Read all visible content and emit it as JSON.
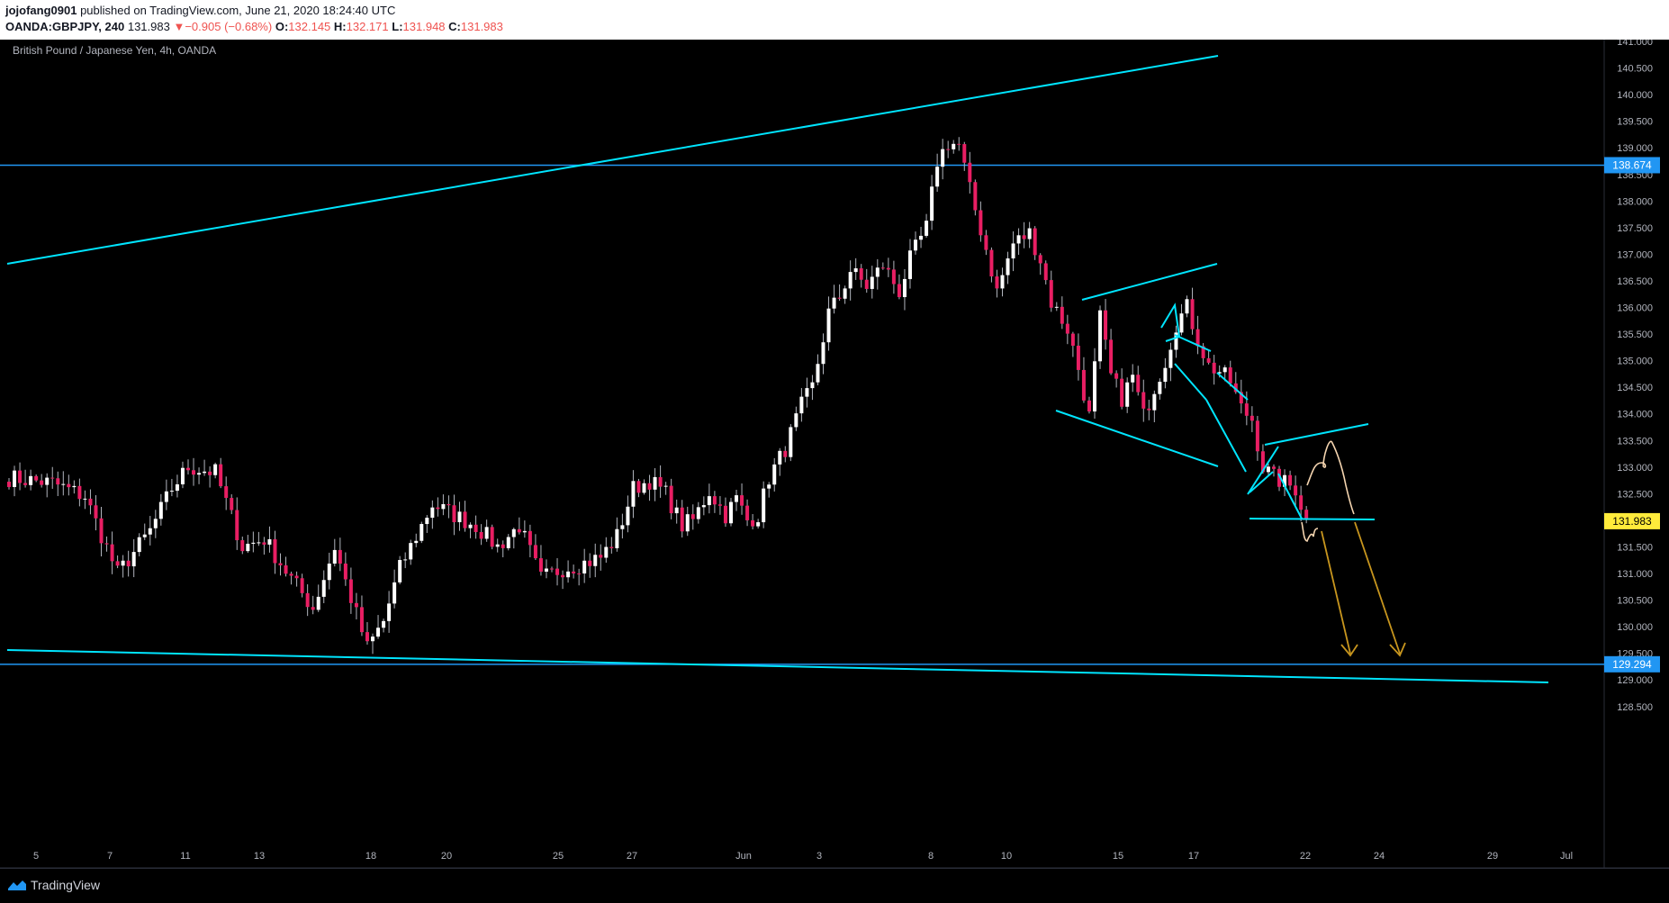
{
  "header": {
    "author": "jojofang0901",
    "published_text": " published on TradingView.com, June 21, 2020 18:24:40 UTC",
    "symbol": "OANDA:GBPJPY, 240",
    "last": "131.983",
    "change": "−0.905 (−0.68%)",
    "o_label": "O:",
    "o_value": "132.145",
    "h_label": "H:",
    "h_value": "132.171",
    "l_label": "L:",
    "l_value": "131.948",
    "c_label": "C:",
    "c_value": "131.983"
  },
  "footer": {
    "brand": "TradingView",
    "logo_icon": "tradingview-logo-icon"
  },
  "colors": {
    "up": "#ffffff",
    "down": "#e91e63",
    "wick": "#b2b5be",
    "trend": "#00e5ff",
    "hline": "#2196f3",
    "arrow": "#c8961e",
    "sketch": "#f5d5b0",
    "price_tag": "#ffeb3b",
    "level_tag": "#2196f3"
  },
  "chart_data": {
    "type": "candlestick",
    "title": "British Pound / Japanese Yen, 4h, OANDA",
    "ylim": [
      128.05,
      141.15
    ],
    "y_ticks": [
      "141.000",
      "140.500",
      "140.000",
      "139.500",
      "139.000",
      "138.500",
      "138.000",
      "137.500",
      "137.000",
      "136.500",
      "136.000",
      "135.500",
      "135.000",
      "134.500",
      "134.000",
      "133.500",
      "133.000",
      "132.500",
      "132.000",
      "131.500",
      "131.000",
      "130.500",
      "130.000",
      "129.500",
      "129.000",
      "128.500"
    ],
    "x_ticks": [
      "5",
      "7",
      "11",
      "13",
      "18",
      "20",
      "25",
      "27",
      "Jun",
      "3",
      "8",
      "10",
      "15",
      "17",
      "22",
      "24",
      "29",
      "Jul"
    ],
    "horizontal_levels": [
      {
        "label": "138.674",
        "value": 138.674
      },
      {
        "label": "129.294",
        "value": 129.294
      }
    ],
    "last_price_label": "131.983",
    "last_price": 131.983,
    "candle_count": 210,
    "anchors": [
      [
        0,
        132.8
      ],
      [
        8,
        132.7
      ],
      [
        14,
        132.45
      ],
      [
        20,
        131.0
      ],
      [
        26,
        131.8
      ],
      [
        30,
        132.6
      ],
      [
        33,
        133.0
      ],
      [
        38,
        132.9
      ],
      [
        43,
        131.5
      ],
      [
        47,
        131.65
      ],
      [
        52,
        130.9
      ],
      [
        56,
        130.35
      ],
      [
        60,
        131.5
      ],
      [
        62,
        130.85
      ],
      [
        66,
        129.6
      ],
      [
        69,
        130.1
      ],
      [
        72,
        131.1
      ],
      [
        75,
        131.7
      ],
      [
        78,
        132.3
      ],
      [
        82,
        132.1
      ],
      [
        86,
        131.9
      ],
      [
        90,
        131.5
      ],
      [
        94,
        131.9
      ],
      [
        98,
        130.9
      ],
      [
        102,
        131.1
      ],
      [
        106,
        131.2
      ],
      [
        109,
        131.3
      ],
      [
        112,
        131.7
      ],
      [
        115,
        132.6
      ],
      [
        118,
        132.75
      ],
      [
        121,
        132.5
      ],
      [
        124,
        131.9
      ],
      [
        126,
        132.0
      ],
      [
        129,
        132.55
      ],
      [
        132,
        132.1
      ],
      [
        134,
        132.4
      ],
      [
        136,
        132.0
      ],
      [
        138,
        132.1
      ],
      [
        140,
        132.8
      ],
      [
        143,
        133.35
      ],
      [
        146,
        134.15
      ],
      [
        148,
        134.5
      ],
      [
        151,
        135.9
      ],
      [
        153,
        136.2
      ],
      [
        155,
        136.7
      ],
      [
        158,
        136.4
      ],
      [
        161,
        136.8
      ],
      [
        164,
        136.3
      ],
      [
        166,
        136.9
      ],
      [
        169,
        137.5
      ],
      [
        171,
        138.75
      ],
      [
        173,
        139.1
      ],
      [
        175,
        139.05
      ],
      [
        177,
        138.2
      ],
      [
        180,
        137.1
      ],
      [
        182,
        136.3
      ],
      [
        185,
        137.2
      ],
      [
        188,
        137.4
      ],
      [
        190,
        136.9
      ],
      [
        192,
        136.1
      ],
      [
        195,
        135.6
      ],
      [
        197,
        134.85
      ],
      [
        199,
        133.95
      ],
      [
        201,
        135.8
      ],
      [
        203,
        134.7
      ],
      [
        205,
        134.3
      ],
      [
        207,
        134.7
      ],
      [
        209,
        133.96
      ],
      [
        211,
        134.5
      ],
      [
        213,
        135.0
      ],
      [
        215,
        135.7
      ],
      [
        217,
        136.0
      ],
      [
        219,
        135.4
      ],
      [
        221,
        134.9
      ],
      [
        223,
        134.8
      ],
      [
        225,
        134.6
      ],
      [
        227,
        134.1
      ],
      [
        229,
        133.9
      ],
      [
        231,
        133.0
      ],
      [
        233,
        132.8
      ],
      [
        235,
        132.7
      ],
      [
        237,
        132.6
      ],
      [
        239,
        132.0
      ]
    ]
  }
}
